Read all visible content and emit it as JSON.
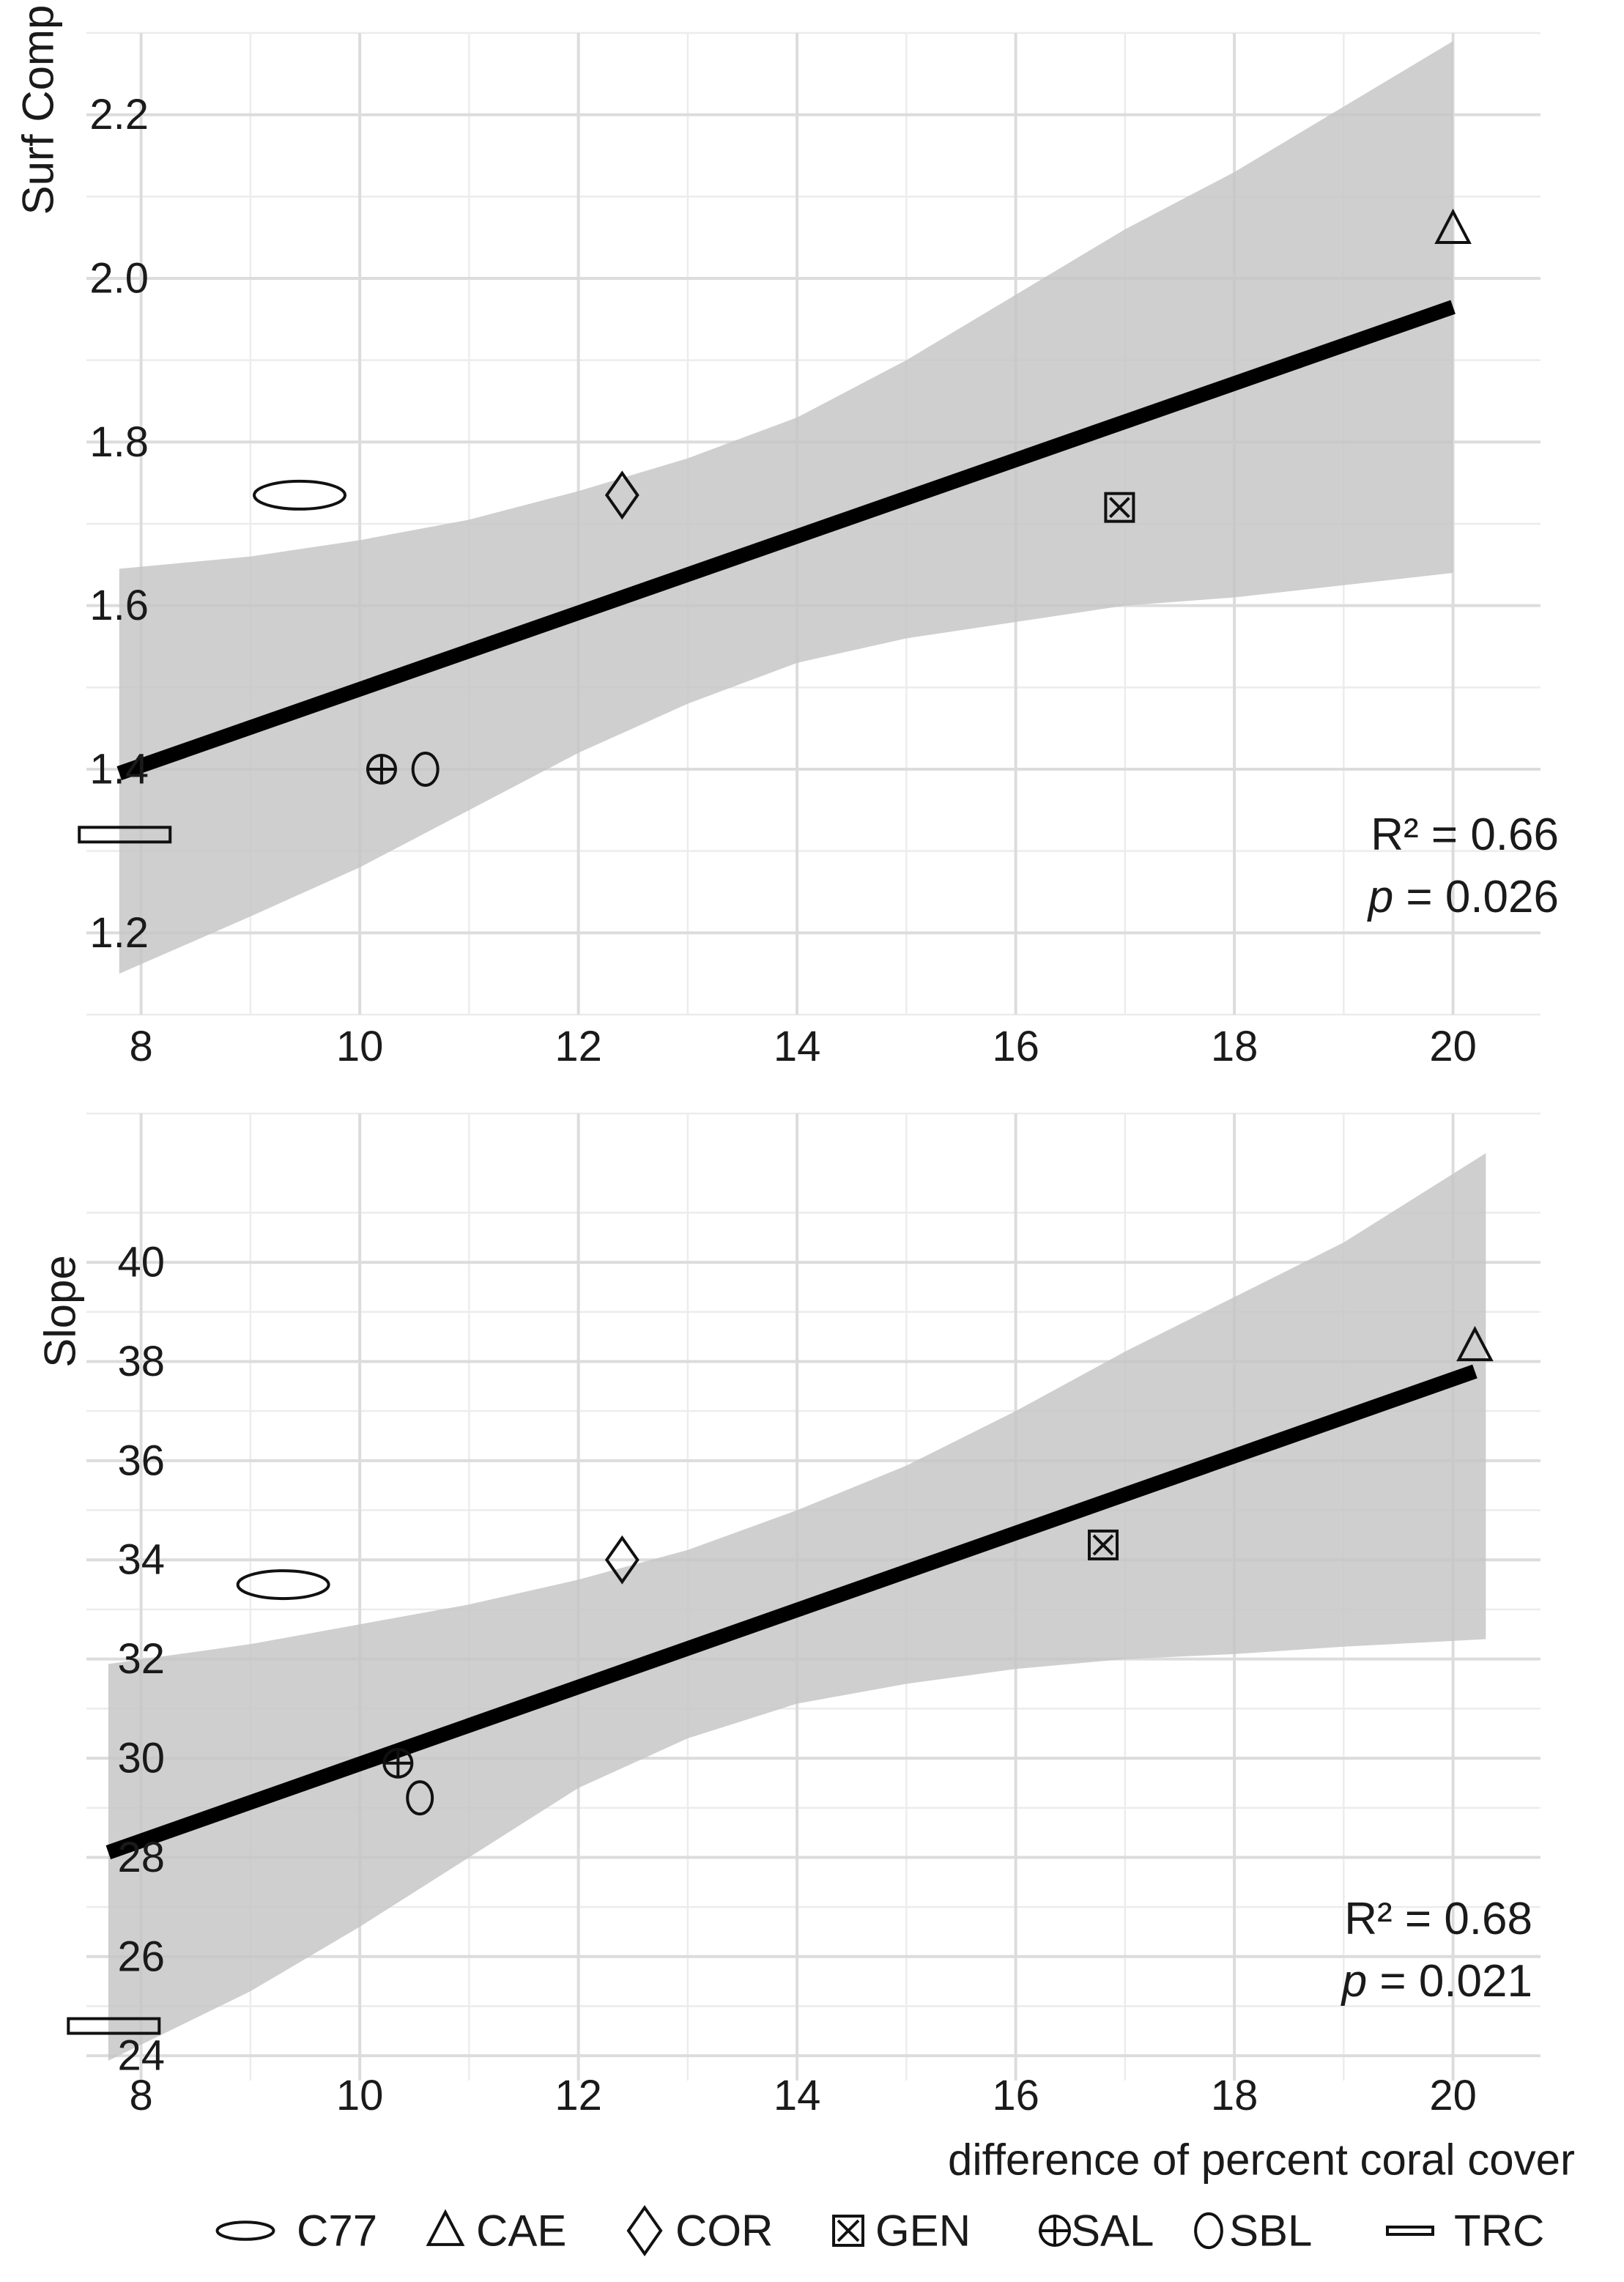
{
  "chart_data": [
    {
      "type": "scatter",
      "panel": "top",
      "xlabel": "",
      "ylabel": "Surf Comp",
      "xlim": [
        7.5,
        20.8
      ],
      "ylim": [
        1.1,
        2.3
      ],
      "xticks": [
        8,
        10,
        12,
        14,
        16,
        18,
        20
      ],
      "yticks": [
        1.2,
        1.4,
        1.6,
        1.8,
        2.0,
        2.2
      ],
      "xtick_labels": [
        "8",
        "10",
        "12",
        "14",
        "16",
        "18",
        "20"
      ],
      "ytick_labels": [
        "1.2",
        "1.4",
        "1.6",
        "1.8",
        "2.0",
        "2.2"
      ],
      "points": [
        {
          "site": "C77",
          "x": 9.45,
          "y": 1.735
        },
        {
          "site": "CAE",
          "x": 20.0,
          "y": 2.06
        },
        {
          "site": "COR",
          "x": 12.4,
          "y": 1.735
        },
        {
          "site": "GEN",
          "x": 16.95,
          "y": 1.72
        },
        {
          "site": "SAL",
          "x": 10.2,
          "y": 1.4
        },
        {
          "site": "SBL",
          "x": 10.6,
          "y": 1.4
        },
        {
          "site": "TRC",
          "x": 7.85,
          "y": 1.32
        }
      ],
      "fit": {
        "x0": 7.8,
        "y0": 1.395,
        "x1": 20.0,
        "y1": 1.965
      },
      "band": {
        "x": [
          7.8,
          9,
          10,
          11,
          12,
          13,
          14,
          15,
          16,
          17,
          18,
          19,
          20
        ],
        "lower": [
          1.15,
          1.22,
          1.28,
          1.35,
          1.42,
          1.48,
          1.53,
          1.56,
          1.58,
          1.6,
          1.61,
          1.625,
          1.64
        ],
        "upper": [
          1.645,
          1.66,
          1.68,
          1.705,
          1.74,
          1.78,
          1.83,
          1.9,
          1.98,
          2.06,
          2.13,
          2.21,
          2.29
        ]
      },
      "annotation": {
        "r2": "R² = 0.66",
        "p_label": "p",
        "p_value": " = 0.026"
      }
    },
    {
      "type": "scatter",
      "panel": "bottom",
      "xlabel": "difference of percent coral cover",
      "ylabel": "Slope",
      "xlim": [
        7.5,
        20.8
      ],
      "ylim": [
        23.5,
        43
      ],
      "xticks": [
        8,
        10,
        12,
        14,
        16,
        18,
        20
      ],
      "yticks": [
        24,
        26,
        28,
        30,
        32,
        34,
        36,
        38,
        40
      ],
      "xtick_labels": [
        "8",
        "10",
        "12",
        "14",
        "16",
        "18",
        "20"
      ],
      "ytick_labels": [
        "24",
        "26",
        "28",
        "30",
        "32",
        "34",
        "36",
        "38",
        "40"
      ],
      "points": [
        {
          "site": "C77",
          "x": 9.3,
          "y": 33.5
        },
        {
          "site": "CAE",
          "x": 20.2,
          "y": 38.3
        },
        {
          "site": "COR",
          "x": 12.4,
          "y": 34.0
        },
        {
          "site": "GEN",
          "x": 16.8,
          "y": 34.3
        },
        {
          "site": "SAL",
          "x": 10.35,
          "y": 29.9
        },
        {
          "site": "SBL",
          "x": 10.55,
          "y": 29.2
        },
        {
          "site": "TRC",
          "x": 7.75,
          "y": 24.6
        }
      ],
      "fit": {
        "x0": 7.7,
        "y0": 28.1,
        "x1": 20.2,
        "y1": 37.8
      },
      "band": {
        "x": [
          7.7,
          9,
          10,
          11,
          12,
          13,
          14,
          15,
          16,
          17,
          18,
          19,
          20.3
        ],
        "lower": [
          23.9,
          25.3,
          26.6,
          28.0,
          29.4,
          30.4,
          31.1,
          31.5,
          31.8,
          32.0,
          32.1,
          32.25,
          32.4
        ],
        "upper": [
          31.9,
          32.3,
          32.7,
          33.1,
          33.6,
          34.2,
          35.0,
          35.9,
          37.0,
          38.2,
          39.3,
          40.4,
          42.2
        ]
      },
      "annotation": {
        "r2": "R² = 0.68",
        "p_label": "p",
        "p_value": " = 0.021"
      }
    }
  ],
  "legend": {
    "position": "bottom",
    "items": [
      {
        "site": "C77",
        "label": "C77"
      },
      {
        "site": "CAE",
        "label": "CAE"
      },
      {
        "site": "COR",
        "label": "COR"
      },
      {
        "site": "GEN",
        "label": "GEN"
      },
      {
        "site": "SAL",
        "label": "SAL"
      },
      {
        "site": "SBL",
        "label": "SBL"
      },
      {
        "site": "TRC",
        "label": "TRC"
      }
    ]
  }
}
